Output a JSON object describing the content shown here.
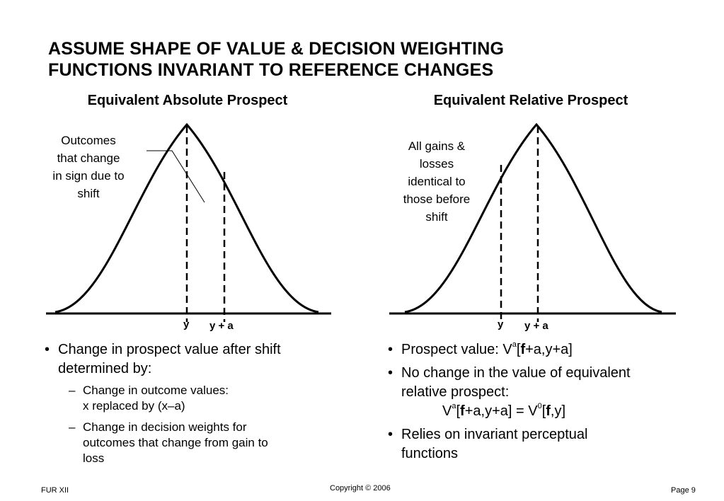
{
  "title": {
    "line1": "ASSUME SHAPE OF VALUE & DECISION WEIGHTING",
    "line2": "FUNCTIONS INVARIANT TO REFERENCE CHANGES"
  },
  "left_panel": {
    "heading": "Equivalent Absolute Prospect",
    "note_lines": [
      "Outcomes",
      "that change",
      "in sign due to",
      "shift"
    ],
    "tick_y": "y",
    "tick_ya": "y + a",
    "bullet1_line1": "Change in prospect value after shift",
    "bullet1_line2": "determined by:",
    "sub1_line1": "Change in outcome values:",
    "sub1_line2": "x replaced by (x–a)",
    "sub2_line1": "Change in decision weights for",
    "sub2_line2": "outcomes that change from gain to",
    "sub2_line3": "loss"
  },
  "right_panel": {
    "heading": "Equivalent Relative Prospect",
    "note_lines": [
      "All gains &",
      "losses",
      "identical to",
      "those before",
      "shift"
    ],
    "tick_y": "y",
    "tick_ya": "y + a",
    "bullet1": {
      "pre": "Prospect value: V",
      "sup": "a",
      "mid": "[",
      "bold": "f",
      "post": "+a,y+a]"
    },
    "bullet2_line1": "No change in the value of equivalent",
    "bullet2_line2": "relative prospect:",
    "formula": {
      "v1": "V",
      "sup1": "a",
      "b1": "[",
      "f1": "f",
      "rest1": "+a,y+a] = V",
      "sup2": "0",
      "b2": "[",
      "f2": "f",
      "rest2": ",y]"
    },
    "bullet3_line1": "Relies on invariant perceptual",
    "bullet3_line2": "functions"
  },
  "footer": {
    "left": "FUR XII",
    "center": "Copyright © 2006",
    "right": "Page 9"
  }
}
